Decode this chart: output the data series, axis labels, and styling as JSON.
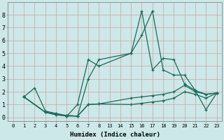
{
  "xlabel": "Humidex (Indice chaleur)",
  "background_color": "#cce8e8",
  "grid_h_color": "#d4a0a0",
  "grid_v_color": "#d4a0a0",
  "line_color": "#1a6b5a",
  "xtick_vals": [
    0,
    1,
    2,
    3,
    4,
    5,
    6,
    7,
    8,
    13,
    14,
    15,
    16,
    17,
    18,
    19,
    20,
    21,
    22,
    23
  ],
  "xtick_labels": [
    "0",
    "1",
    "2",
    "3",
    "4",
    "5",
    "6",
    "7",
    "8",
    "13",
    "14",
    "15",
    "16",
    "17",
    "18",
    "19",
    "20",
    "21",
    "22",
    "23"
  ],
  "yticks": [
    0,
    1,
    2,
    3,
    4,
    5,
    6,
    7,
    8
  ],
  "ylim": [
    -0.3,
    9.0
  ],
  "lines": [
    {
      "x": [
        1,
        2,
        3,
        4,
        5,
        6,
        7,
        8,
        15,
        16,
        17,
        18,
        19,
        20,
        21,
        22,
        23
      ],
      "y": [
        1.6,
        2.3,
        0.5,
        0.3,
        0.1,
        1.0,
        4.5,
        4.0,
        5.0,
        8.3,
        3.7,
        4.6,
        4.5,
        2.6,
        2.1,
        0.6,
        1.9
      ]
    },
    {
      "x": [
        1,
        3,
        4,
        5,
        6,
        7,
        8,
        15,
        16,
        17,
        18,
        19,
        20,
        21,
        22,
        23
      ],
      "y": [
        1.6,
        0.4,
        0.3,
        0.15,
        0.1,
        1.0,
        1.05,
        1.5,
        1.6,
        1.7,
        1.8,
        2.0,
        2.5,
        2.0,
        1.8,
        1.9
      ]
    },
    {
      "x": [
        1,
        3,
        4,
        5,
        6,
        7,
        8,
        15,
        16,
        17,
        18,
        19,
        20,
        21,
        22,
        23
      ],
      "y": [
        1.6,
        0.4,
        0.2,
        0.15,
        0.1,
        1.0,
        1.05,
        1.0,
        1.1,
        1.2,
        1.3,
        1.5,
        2.0,
        1.8,
        1.5,
        1.9
      ]
    },
    {
      "x": [
        1,
        3,
        4,
        5,
        6,
        7,
        8,
        15,
        16,
        17,
        18,
        19,
        20,
        21,
        22,
        23
      ],
      "y": [
        1.6,
        0.4,
        0.2,
        0.1,
        0.1,
        3.0,
        4.5,
        5.0,
        6.4,
        8.3,
        3.7,
        3.3,
        3.3,
        2.1,
        1.8,
        1.9
      ]
    }
  ]
}
